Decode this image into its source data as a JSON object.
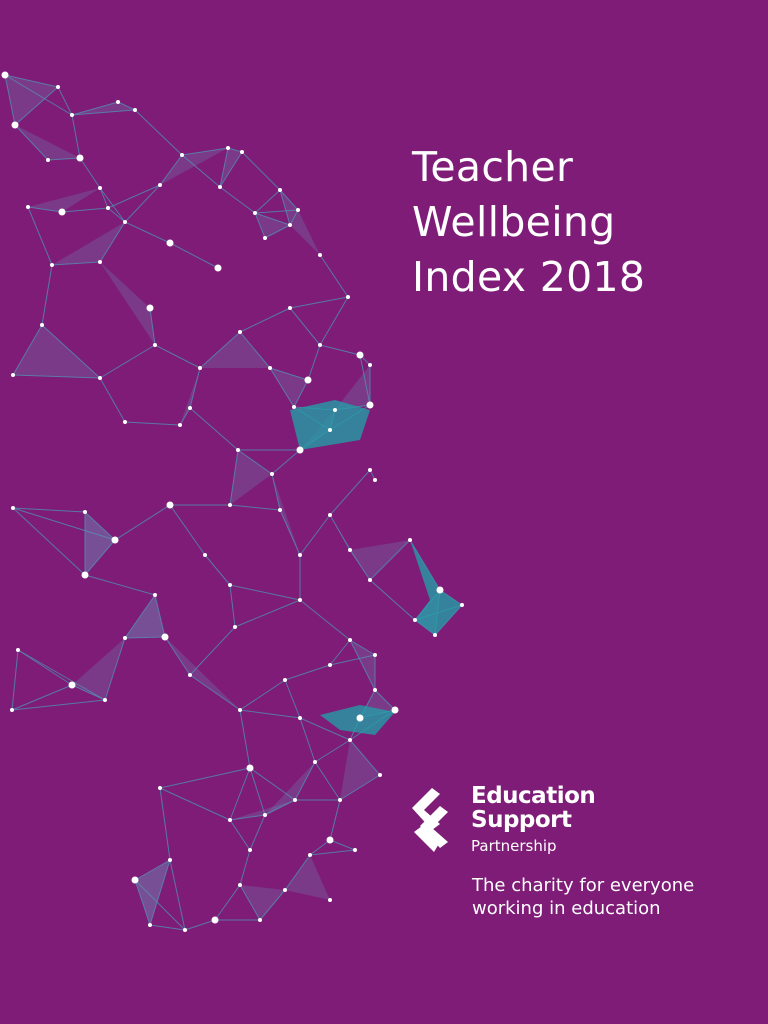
{
  "cover": {
    "title": [
      "Teacher",
      "Wellbeing",
      "Index 2018"
    ],
    "logo": {
      "name": [
        "Education",
        "Support"
      ],
      "subname": "Partnership"
    },
    "tagline": [
      "The charity for everyone",
      "working in education"
    ]
  }
}
